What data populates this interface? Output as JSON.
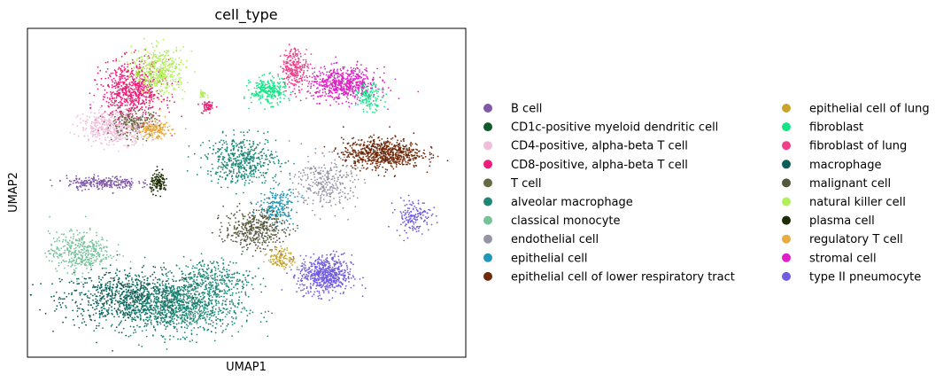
{
  "chart_data": {
    "type": "scatter",
    "title": "cell_type",
    "xlabel": "UMAP1",
    "ylabel": "UMAP2",
    "ticks": "none",
    "grid": false,
    "legend_placement": "right, outside plot, two columns",
    "categories": [
      {
        "name": "B cell",
        "color": "#7f58a9"
      },
      {
        "name": "CD1c-positive myeloid dendritic cell",
        "color": "#0f5a2a"
      },
      {
        "name": "CD4-positive, alpha-beta T cell",
        "color": "#efbfda"
      },
      {
        "name": "CD8-positive, alpha-beta T cell",
        "color": "#f01a78"
      },
      {
        "name": "T cell",
        "color": "#646a45"
      },
      {
        "name": "alveolar macrophage",
        "color": "#1e8877"
      },
      {
        "name": "classical monocyte",
        "color": "#77c29b"
      },
      {
        "name": "endothelial cell",
        "color": "#9693a6"
      },
      {
        "name": "epithelial cell",
        "color": "#2196b6"
      },
      {
        "name": "epithelial cell of lower respiratory tract",
        "color": "#6e2a0a"
      },
      {
        "name": "epithelial cell of lung",
        "color": "#c7a42c"
      },
      {
        "name": "fibroblast",
        "color": "#14e486"
      },
      {
        "name": "fibroblast of lung",
        "color": "#ee3f88"
      },
      {
        "name": "macrophage",
        "color": "#0c5d55"
      },
      {
        "name": "malignant cell",
        "color": "#55573c"
      },
      {
        "name": "natural killer cell",
        "color": "#b2f059"
      },
      {
        "name": "plasma cell",
        "color": "#1c2b04"
      },
      {
        "name": "regulatory T cell",
        "color": "#e8ac41"
      },
      {
        "name": "stromal cell",
        "color": "#de20c4"
      },
      {
        "name": "type II pneumocyte",
        "color": "#725ce0"
      }
    ],
    "clusters": [
      {
        "category": "macrophage",
        "x": 2.4,
        "y": 1.8,
        "rx": 1.6,
        "ry": 0.8,
        "n": 900
      },
      {
        "category": "alveolar macrophage",
        "x": 3.5,
        "y": 1.5,
        "rx": 1.4,
        "ry": 0.8,
        "n": 900
      },
      {
        "category": "alveolar macrophage",
        "x": 4.2,
        "y": 2.4,
        "rx": 0.9,
        "ry": 0.6,
        "n": 300
      },
      {
        "category": "classical monocyte",
        "x": 1.2,
        "y": 3.2,
        "rx": 0.7,
        "ry": 0.6,
        "n": 400
      },
      {
        "category": "B cell",
        "x": 1.7,
        "y": 5.3,
        "rx": 0.8,
        "ry": 0.2,
        "n": 250
      },
      {
        "category": "plasma cell",
        "x": 3.0,
        "y": 5.3,
        "rx": 0.2,
        "ry": 0.3,
        "n": 120
      },
      {
        "category": "CD8-positive, alpha-beta T cell",
        "x": 2.4,
        "y": 8.1,
        "rx": 0.7,
        "ry": 0.9,
        "n": 700
      },
      {
        "category": "CD4-positive, alpha-beta T cell",
        "x": 2.0,
        "y": 7.0,
        "rx": 0.8,
        "ry": 0.5,
        "n": 500
      },
      {
        "category": "T cell",
        "x": 2.4,
        "y": 7.1,
        "rx": 0.6,
        "ry": 0.4,
        "n": 200
      },
      {
        "category": "natural killer cell",
        "x": 3.0,
        "y": 8.7,
        "rx": 0.6,
        "ry": 0.7,
        "n": 450
      },
      {
        "category": "regulatory T cell",
        "x": 2.9,
        "y": 6.9,
        "rx": 0.4,
        "ry": 0.25,
        "n": 150
      },
      {
        "category": "CD8-positive, alpha-beta T cell",
        "x": 4.1,
        "y": 7.6,
        "rx": 0.12,
        "ry": 0.2,
        "n": 60
      },
      {
        "category": "natural killer cell",
        "x": 4.0,
        "y": 8.0,
        "rx": 0.1,
        "ry": 0.1,
        "n": 30
      },
      {
        "category": "alveolar macrophage",
        "x": 4.9,
        "y": 6.0,
        "rx": 0.8,
        "ry": 0.7,
        "n": 500
      },
      {
        "category": "endothelial cell",
        "x": 6.8,
        "y": 5.3,
        "rx": 0.7,
        "ry": 0.8,
        "n": 300
      },
      {
        "category": "epithelial cell",
        "x": 5.7,
        "y": 4.6,
        "rx": 0.4,
        "ry": 0.6,
        "n": 200
      },
      {
        "category": "malignant cell",
        "x": 5.2,
        "y": 3.9,
        "rx": 0.7,
        "ry": 0.6,
        "n": 400
      },
      {
        "category": "epithelial cell of lung",
        "x": 5.8,
        "y": 3.0,
        "rx": 0.3,
        "ry": 0.3,
        "n": 120
      },
      {
        "category": "type II pneumocyte",
        "x": 6.8,
        "y": 2.5,
        "rx": 0.6,
        "ry": 0.6,
        "n": 600
      },
      {
        "category": "type II pneumocyte",
        "x": 8.8,
        "y": 4.3,
        "rx": 0.4,
        "ry": 0.5,
        "n": 150
      },
      {
        "category": "epithelial cell of lower respiratory tract",
        "x": 8.1,
        "y": 6.2,
        "rx": 0.9,
        "ry": 0.45,
        "n": 700
      },
      {
        "category": "stromal cell",
        "x": 7.2,
        "y": 8.3,
        "rx": 0.8,
        "ry": 0.5,
        "n": 600
      },
      {
        "category": "fibroblast",
        "x": 5.5,
        "y": 8.1,
        "rx": 0.4,
        "ry": 0.4,
        "n": 250
      },
      {
        "category": "fibroblast",
        "x": 7.8,
        "y": 7.9,
        "rx": 0.3,
        "ry": 0.4,
        "n": 120
      },
      {
        "category": "fibroblast of lung",
        "x": 6.1,
        "y": 8.8,
        "rx": 0.3,
        "ry": 0.6,
        "n": 250
      }
    ]
  }
}
